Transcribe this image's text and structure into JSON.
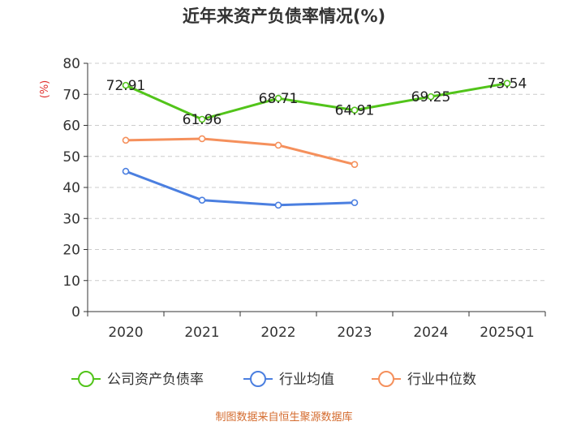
{
  "chart_data": {
    "type": "line",
    "title": "近年来资产负债率情况(%)",
    "ylabel": "(%)",
    "ylim": [
      0,
      80
    ],
    "yticks": [
      0,
      10,
      20,
      30,
      40,
      50,
      60,
      70,
      80
    ],
    "grid": true,
    "legend_position": "bottom",
    "categories": [
      "2020",
      "2021",
      "2022",
      "2023",
      "2024",
      "2025Q1"
    ],
    "series": [
      {
        "name": "公司资产负债率",
        "color": "#52c41a",
        "values": [
          72.91,
          61.96,
          68.71,
          64.91,
          69.25,
          73.54
        ],
        "data_labels": [
          "72.91",
          "61.96",
          "68.71",
          "64.91",
          "69.25",
          "73.54"
        ]
      },
      {
        "name": "行业均值",
        "color": "#4b7fe0",
        "values": [
          45.2,
          35.9,
          34.3,
          35.1,
          null,
          null
        ]
      },
      {
        "name": "行业中位数",
        "color": "#f5905c",
        "values": [
          55.2,
          55.7,
          53.6,
          47.4,
          null,
          null
        ]
      }
    ]
  },
  "footer": {
    "source": "制图数据来自恒生聚源数据库"
  }
}
